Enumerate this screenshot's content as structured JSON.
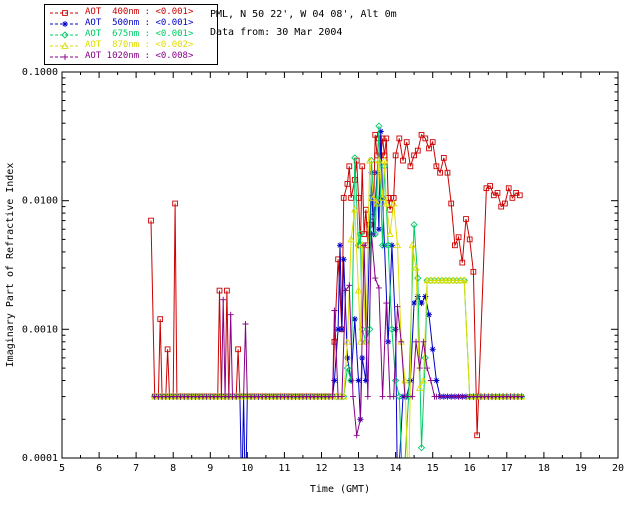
{
  "header": {
    "line1": "PML, N 50 22', W 04 08', Alt 0m",
    "line2": "Data from: 30 Mar 2004"
  },
  "chart_data": {
    "type": "line",
    "title": "",
    "xlabel": "Time (GMT)",
    "ylabel": "Imaginary Part of Refractive Index",
    "xlim": [
      5,
      20
    ],
    "ylim": [
      0.0001,
      0.1
    ],
    "y_scale": "log",
    "grid": false,
    "legend_position": "top-left",
    "x_ticks": [
      5,
      6,
      7,
      8,
      9,
      10,
      11,
      12,
      13,
      14,
      15,
      16,
      17,
      18,
      19,
      20
    ],
    "x_tick_labels": [
      "5",
      "6",
      "7",
      "8",
      "9",
      "10",
      "11",
      "12",
      "13",
      "14",
      "15",
      "16",
      "17",
      "18",
      "19",
      "20"
    ],
    "y_ticks": [
      0.0001,
      0.001,
      0.01,
      0.1
    ],
    "y_tick_labels": [
      "0.0001",
      "0.0010",
      "0.0100",
      "0.1000"
    ],
    "series": [
      {
        "id": "400nm",
        "name": "AOT 400nm",
        "legend_label": "AOT  400nm : <0.001>",
        "color": "#cc0000",
        "marker": "square",
        "runs": [
          {
            "from": 7.5,
            "to": 12.3,
            "step": 0.1,
            "value": 0.0003
          }
        ],
        "points": [
          [
            7.4,
            0.007
          ],
          [
            7.65,
            0.0012
          ],
          [
            7.85,
            0.0007
          ],
          [
            8.05,
            0.0095
          ],
          [
            9.25,
            0.002
          ],
          [
            9.45,
            0.002
          ],
          [
            9.75,
            0.0007
          ],
          [
            12.35,
            0.0008
          ],
          [
            12.45,
            0.0035
          ],
          [
            12.55,
            0.001
          ],
          [
            12.6,
            0.0105
          ],
          [
            12.7,
            0.0135
          ],
          [
            12.75,
            0.0185
          ],
          [
            12.8,
            0.0105
          ],
          [
            12.9,
            0.0145
          ],
          [
            12.95,
            0.0205
          ],
          [
            13.0,
            0.0105
          ],
          [
            13.05,
            0.0045
          ],
          [
            13.1,
            0.0185
          ],
          [
            13.15,
            0.0055
          ],
          [
            13.2,
            0.0085
          ],
          [
            13.25,
            0.0045
          ],
          [
            13.3,
            0.0065
          ],
          [
            13.35,
            0.0105
          ],
          [
            13.4,
            0.0075
          ],
          [
            13.45,
            0.0325
          ],
          [
            13.5,
            0.0225
          ],
          [
            13.55,
            0.0305
          ],
          [
            13.6,
            0.0225
          ],
          [
            13.65,
            0.0305
          ],
          [
            13.7,
            0.0225
          ],
          [
            13.75,
            0.0305
          ],
          [
            13.8,
            0.0105
          ],
          [
            13.85,
            0.0085
          ],
          [
            13.9,
            0.0095
          ],
          [
            13.95,
            0.0105
          ],
          [
            14.0,
            0.0225
          ],
          [
            14.1,
            0.0305
          ],
          [
            14.2,
            0.0205
          ],
          [
            14.3,
            0.0285
          ],
          [
            14.4,
            0.0185
          ],
          [
            14.5,
            0.0225
          ],
          [
            14.6,
            0.0245
          ],
          [
            14.7,
            0.0325
          ],
          [
            14.8,
            0.0305
          ],
          [
            14.9,
            0.0255
          ],
          [
            15.0,
            0.0285
          ],
          [
            15.1,
            0.0185
          ],
          [
            15.2,
            0.0165
          ],
          [
            15.3,
            0.0215
          ],
          [
            15.4,
            0.0165
          ],
          [
            15.5,
            0.0095
          ],
          [
            15.6,
            0.0045
          ],
          [
            15.7,
            0.0052
          ],
          [
            15.8,
            0.0033
          ],
          [
            15.9,
            0.0072
          ],
          [
            16.0,
            0.005
          ],
          [
            16.1,
            0.0028
          ],
          [
            16.2,
            0.00015
          ],
          [
            16.45,
            0.0125
          ],
          [
            16.55,
            0.013
          ],
          [
            16.65,
            0.011
          ],
          [
            16.75,
            0.0115
          ],
          [
            16.85,
            0.009
          ],
          [
            16.95,
            0.0095
          ],
          [
            17.05,
            0.0125
          ],
          [
            17.15,
            0.0105
          ],
          [
            17.25,
            0.0115
          ],
          [
            17.35,
            0.011
          ]
        ]
      },
      {
        "id": "500nm",
        "name": "AOT 500nm",
        "legend_label": "AOT  500nm : <0.001>",
        "color": "#0000cc",
        "marker": "asterisk",
        "runs": [
          {
            "from": 7.5,
            "to": 12.3,
            "step": 0.1,
            "value": 0.0003
          },
          {
            "from": 15.2,
            "to": 17.35,
            "step": 0.1,
            "value": 0.0003
          }
        ],
        "points": [
          [
            9.85,
            5e-05
          ],
          [
            9.95,
            4e-05
          ],
          [
            12.35,
            0.0004
          ],
          [
            12.45,
            0.001
          ],
          [
            12.5,
            0.0045
          ],
          [
            12.55,
            0.001
          ],
          [
            12.6,
            0.0035
          ],
          [
            12.7,
            0.0006
          ],
          [
            12.8,
            0.0004
          ],
          [
            12.9,
            0.0012
          ],
          [
            13.0,
            0.0004
          ],
          [
            13.05,
            0.0002
          ],
          [
            13.1,
            0.0006
          ],
          [
            13.2,
            0.0004
          ],
          [
            13.3,
            0.0055
          ],
          [
            13.35,
            0.0165
          ],
          [
            13.4,
            0.0055
          ],
          [
            13.5,
            0.0165
          ],
          [
            13.55,
            0.006
          ],
          [
            13.6,
            0.0345
          ],
          [
            13.65,
            0.0105
          ],
          [
            13.7,
            0.0045
          ],
          [
            13.8,
            0.0008
          ],
          [
            13.9,
            0.0045
          ],
          [
            14.0,
            0.001
          ],
          [
            14.05,
            5e-05
          ],
          [
            14.2,
            0.0003
          ],
          [
            14.3,
            0.0003
          ],
          [
            14.4,
            0.0004
          ],
          [
            14.5,
            0.0016
          ],
          [
            14.6,
            0.0018
          ],
          [
            14.7,
            0.0016
          ],
          [
            14.8,
            0.0018
          ],
          [
            14.9,
            0.0013
          ],
          [
            15.0,
            0.0007
          ],
          [
            15.1,
            0.0004
          ]
        ]
      },
      {
        "id": "675nm",
        "name": "AOT 675nm",
        "legend_label": "AOT  675nm : <0.001>",
        "color": "#00cc66",
        "marker": "diamond",
        "runs": [
          {
            "from": 7.5,
            "to": 12.6,
            "step": 0.1,
            "value": 0.0003
          },
          {
            "from": 14.85,
            "to": 15.85,
            "step": 0.1,
            "value": 0.0024
          },
          {
            "from": 16.0,
            "to": 17.35,
            "step": 0.1,
            "value": 0.0003
          }
        ],
        "points": [
          [
            12.7,
            0.0005
          ],
          [
            12.8,
            0.0004
          ],
          [
            12.9,
            0.0215
          ],
          [
            13.0,
            0.0045
          ],
          [
            13.05,
            0.0055
          ],
          [
            13.1,
            0.001
          ],
          [
            13.2,
            0.0008
          ],
          [
            13.3,
            0.001
          ],
          [
            13.35,
            0.0205
          ],
          [
            13.45,
            0.0055
          ],
          [
            13.55,
            0.038
          ],
          [
            13.6,
            0.0105
          ],
          [
            13.65,
            0.0045
          ],
          [
            13.7,
            0.0185
          ],
          [
            13.8,
            0.0045
          ],
          [
            13.9,
            0.001
          ],
          [
            14.0,
            0.0004
          ],
          [
            14.1,
            0.0003
          ],
          [
            14.2,
            5e-05
          ],
          [
            14.35,
            0.0003
          ],
          [
            14.5,
            0.0065
          ],
          [
            14.6,
            0.0025
          ],
          [
            14.7,
            0.00012
          ],
          [
            14.8,
            0.0006
          ]
        ]
      },
      {
        "id": "870nm",
        "name": "AOT 870nm",
        "legend_label": "AOT  870nm : <0.002>",
        "color": "#dede00",
        "marker": "triangle",
        "runs": [
          {
            "from": 7.5,
            "to": 12.6,
            "step": 0.1,
            "value": 0.0003
          },
          {
            "from": 14.85,
            "to": 15.85,
            "step": 0.1,
            "value": 0.0024
          },
          {
            "from": 16.0,
            "to": 17.4,
            "step": 0.1,
            "value": 0.0003
          }
        ],
        "points": [
          [
            12.7,
            0.0008
          ],
          [
            12.8,
            0.005
          ],
          [
            12.9,
            0.0085
          ],
          [
            13.0,
            0.002
          ],
          [
            13.05,
            0.0008
          ],
          [
            13.1,
            0.0045
          ],
          [
            13.2,
            0.0008
          ],
          [
            13.3,
            0.0205
          ],
          [
            13.4,
            0.0105
          ],
          [
            13.5,
            0.0095
          ],
          [
            13.55,
            0.0205
          ],
          [
            13.65,
            0.0105
          ],
          [
            13.7,
            0.0205
          ],
          [
            13.75,
            0.0095
          ],
          [
            13.85,
            0.0055
          ],
          [
            13.95,
            0.0095
          ],
          [
            14.05,
            0.0045
          ],
          [
            14.15,
            0.0008
          ],
          [
            14.25,
            0.0004
          ],
          [
            14.35,
            5e-05
          ],
          [
            14.45,
            0.0045
          ],
          [
            14.55,
            0.003
          ],
          [
            14.65,
            0.00035
          ],
          [
            14.75,
            0.0004
          ]
        ]
      },
      {
        "id": "1020nm",
        "name": "AOT 1020nm",
        "legend_label": "AOT 1020nm : <0.008>",
        "color": "#880088",
        "marker": "plus",
        "runs": [
          {
            "from": 7.5,
            "to": 12.25,
            "step": 0.1,
            "value": 0.0003
          },
          {
            "from": 15.1,
            "to": 17.35,
            "step": 0.1,
            "value": 0.0003
          }
        ],
        "points": [
          [
            9.35,
            0.0017
          ],
          [
            9.55,
            0.0013
          ],
          [
            9.95,
            0.0011
          ],
          [
            12.35,
            0.0014
          ],
          [
            12.45,
            0.0003
          ],
          [
            12.55,
            0.0003
          ],
          [
            12.65,
            0.002
          ],
          [
            12.75,
            0.0022
          ],
          [
            12.85,
            0.0003
          ],
          [
            12.95,
            0.00015
          ],
          [
            13.05,
            0.0002
          ],
          [
            13.15,
            0.0045
          ],
          [
            13.25,
            0.0003
          ],
          [
            13.35,
            0.0055
          ],
          [
            13.45,
            0.0025
          ],
          [
            13.55,
            0.0021
          ],
          [
            13.65,
            0.0003
          ],
          [
            13.75,
            0.0016
          ],
          [
            13.85,
            0.0003
          ],
          [
            13.95,
            0.0003
          ],
          [
            14.05,
            0.0015
          ],
          [
            14.15,
            0.0008
          ],
          [
            14.25,
            0.0003
          ],
          [
            14.45,
            0.0003
          ],
          [
            14.55,
            0.0008
          ],
          [
            14.65,
            0.0005
          ],
          [
            14.75,
            0.0008
          ],
          [
            14.85,
            0.0005
          ],
          [
            14.95,
            0.0004
          ],
          [
            15.05,
            0.0003
          ]
        ]
      }
    ]
  }
}
